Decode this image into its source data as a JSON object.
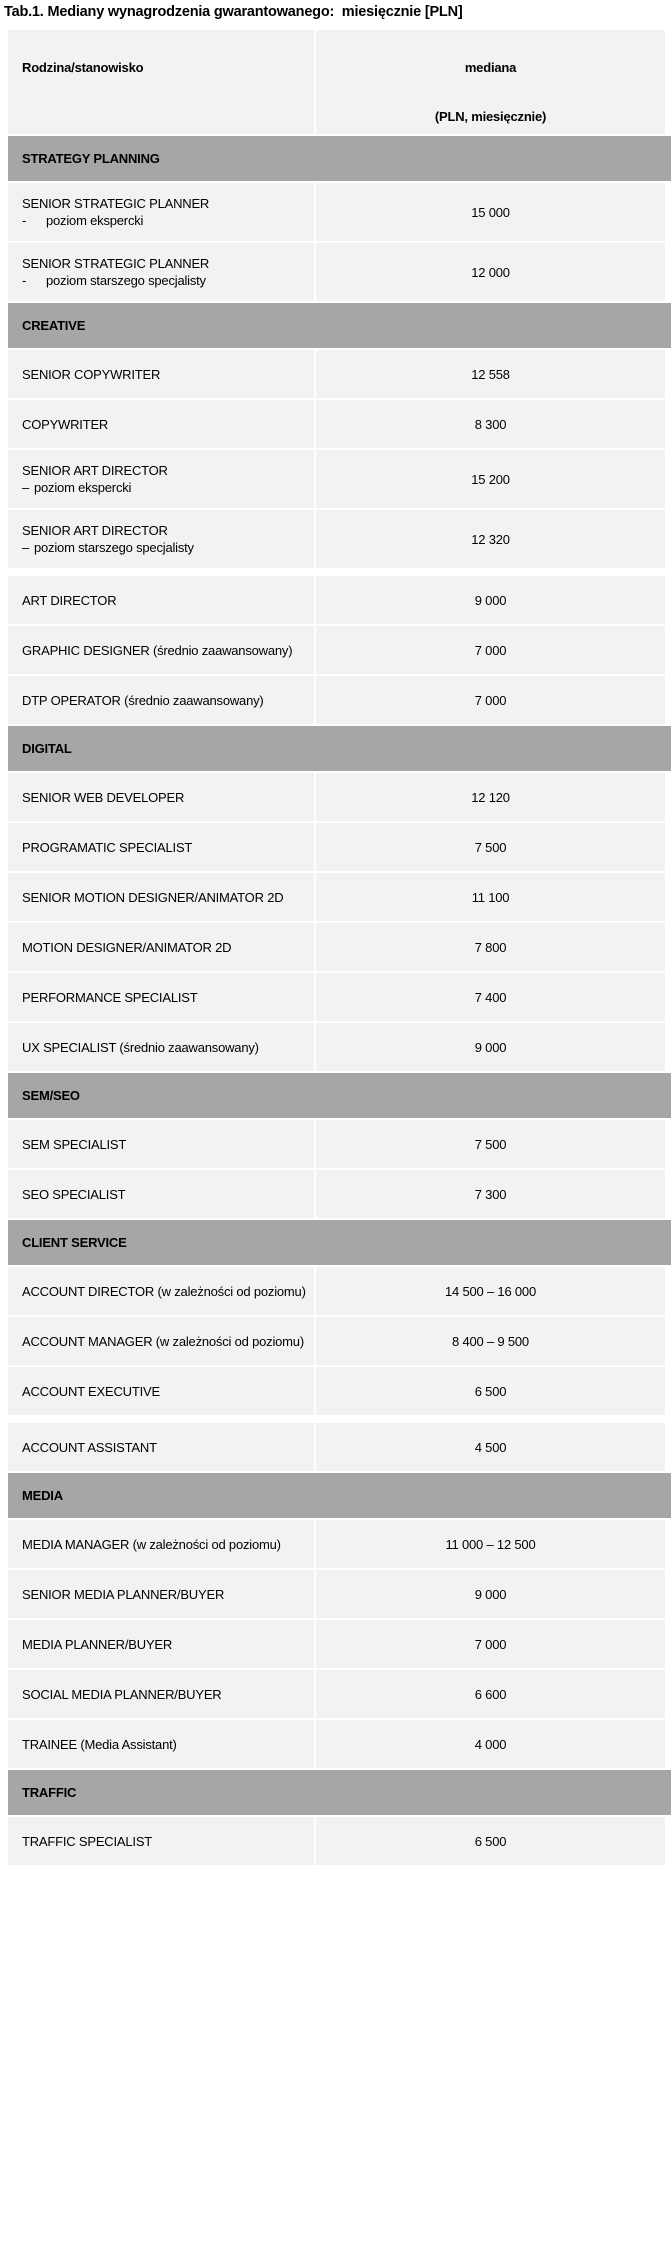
{
  "title": "Tab.1. Mediany wynagrodzenia gwarantowanego:  miesięcznie [PLN]",
  "colors": {
    "section_header_bg": "#a6a6a6",
    "row_bg": "#f2f2f2",
    "separator": "#ffffff",
    "text": "#000000"
  },
  "table": {
    "header": {
      "col1": "Rodzina/stanowisko",
      "col2_line1": "mediana",
      "col2_line2": "(PLN, miesięcznie)"
    },
    "sections": [
      {
        "name": "STRATEGY PLANNING",
        "rows": [
          {
            "label": "SENIOR STRATEGIC PLANNER",
            "sub_marker": "-",
            "sub_text": "poziom ekspercki",
            "value": "15 000"
          },
          {
            "label": "SENIOR STRATEGIC PLANNER",
            "sub_marker": "-",
            "sub_text": "poziom starszego specjalisty",
            "value": "12 000"
          }
        ]
      },
      {
        "name": "CREATIVE",
        "rows": [
          {
            "label": "SENIOR COPYWRITER",
            "value": "12 558"
          },
          {
            "label": "COPYWRITER",
            "value": "8 300"
          },
          {
            "label": "SENIOR ART DIRECTOR",
            "sub_marker": "–",
            "sub_text": "poziom ekspercki",
            "value": "15 200"
          },
          {
            "label": "SENIOR ART DIRECTOR",
            "sub_marker": "–",
            "sub_text": "poziom starszego specjalisty",
            "value": "12 320"
          },
          {
            "label": "ART DIRECTOR",
            "value": "9 000",
            "gap_before": true
          },
          {
            "label": "GRAPHIC DESIGNER (średnio zaawansowany)",
            "value": "7 000"
          },
          {
            "label": "DTP OPERATOR (średnio zaawansowany)",
            "value": "7 000"
          }
        ]
      },
      {
        "name": "DIGITAL",
        "rows": [
          {
            "label": "SENIOR WEB DEVELOPER",
            "value": "12 120"
          },
          {
            "label": "PROGRAMATIC SPECIALIST",
            "value": "7 500"
          },
          {
            "label": "SENIOR MOTION DESIGNER/ANIMATOR 2D",
            "value": "11 100"
          },
          {
            "label": "MOTION DESIGNER/ANIMATOR 2D",
            "value": "7 800"
          },
          {
            "label": "PERFORMANCE SPECIALIST",
            "value": "7 400"
          },
          {
            "label": "UX SPECIALIST (średnio zaawansowany)",
            "value": "9 000"
          }
        ]
      },
      {
        "name": "SEM/SEO",
        "rows": [
          {
            "label": "SEM SPECIALIST",
            "value": "7 500"
          },
          {
            "label": "SEO SPECIALIST",
            "value": "7 300"
          }
        ]
      },
      {
        "name": "CLIENT SERVICE",
        "rows": [
          {
            "label": "ACCOUNT DIRECTOR (w zależności od poziomu)",
            "value": "14 500 – 16 000"
          },
          {
            "label": "ACCOUNT MANAGER (w zależności od poziomu)",
            "value": "8 400 – 9 500"
          },
          {
            "label": "ACCOUNT EXECUTIVE",
            "value": "6 500"
          },
          {
            "label": "ACCOUNT ASSISTANT",
            "value": "4 500",
            "gap_before": true
          }
        ]
      },
      {
        "name": "MEDIA",
        "rows": [
          {
            "label": "MEDIA MANAGER (w zależności od poziomu)",
            "value": "11 000 – 12 500"
          },
          {
            "label": "SENIOR MEDIA PLANNER/BUYER",
            "value": "9 000"
          },
          {
            "label": "MEDIA PLANNER/BUYER",
            "value": "7 000"
          },
          {
            "label": "SOCIAL MEDIA PLANNER/BUYER",
            "value": "6 600"
          },
          {
            "label": "TRAINEE (Media Assistant)",
            "value": "4 000"
          }
        ]
      },
      {
        "name": "TRAFFIC",
        "rows": [
          {
            "label": "TRAFFIC SPECIALIST",
            "value": "6 500"
          }
        ]
      }
    ]
  }
}
